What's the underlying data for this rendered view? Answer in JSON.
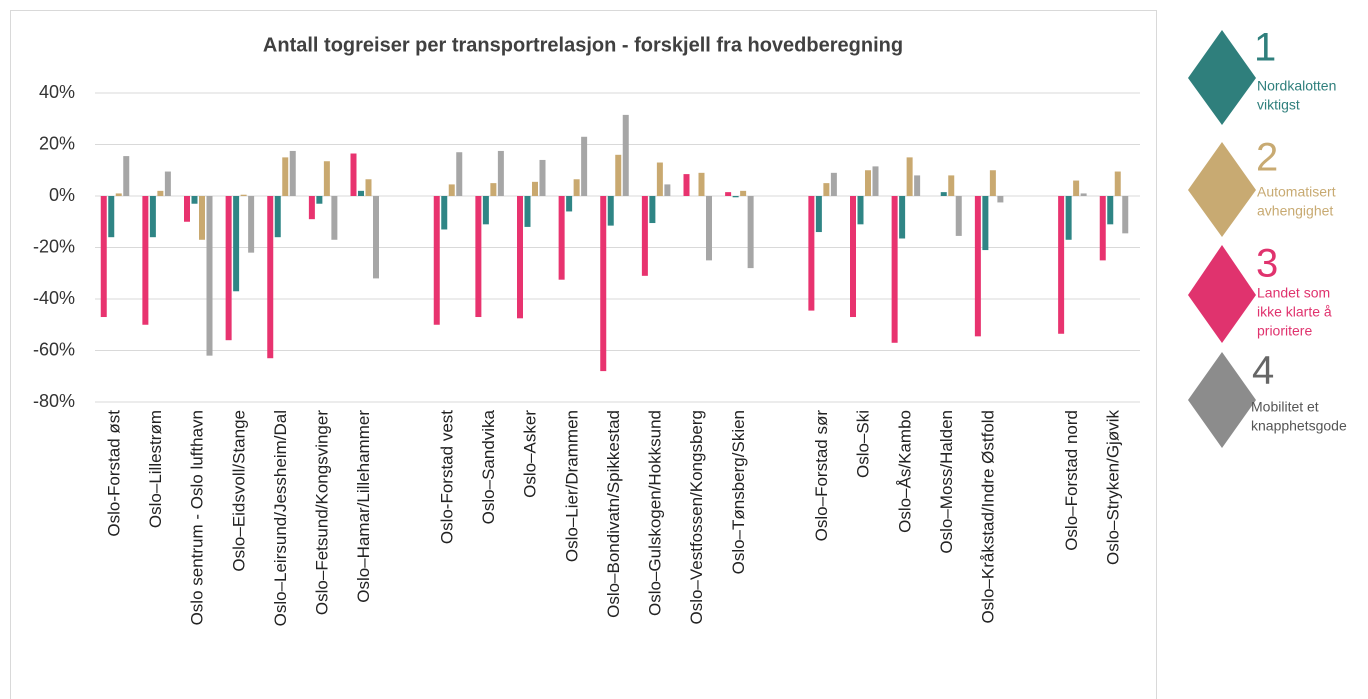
{
  "chart_data": {
    "type": "bar",
    "title": "Antall togreiser per transportrelasjon - forskjell fra hovedberegning",
    "categories": [
      "Oslo-Forstad øst",
      "Oslo–Lillestrøm",
      "Oslo sentrum - Oslo lufthavn",
      "Oslo–Eidsvoll/Stange",
      "Oslo–Leirsund/Jessheim/Dal",
      "Oslo–Fetsund/Kongsvinger",
      "Oslo–Hamar/Lillehammer",
      null,
      "Oslo-Forstad vest",
      "Oslo–Sandvika",
      "Oslo–Asker",
      "Oslo–Lier/Drammen",
      "Oslo–Bondivatn/Spikkestad",
      "Oslo–Gulskogen/Hokksund",
      "Oslo–Vestfossen/Kongsberg",
      "Oslo–Tønsberg/Skien",
      null,
      "Oslo–Forstad sør",
      "Oslo–Ski",
      "Oslo–Ås/Kambo",
      "Oslo–Moss/Halden",
      "Oslo–Kråkstad/Indre Østfold",
      null,
      "Oslo–Forstad nord",
      "Oslo–Stryken/Gjøvik"
    ],
    "series": [
      {
        "color": "#e8336f",
        "values": [
          -47,
          -50,
          -10,
          -56,
          -63,
          -9,
          16.5,
          null,
          -50,
          -47,
          -47.5,
          -32.5,
          -68,
          -31,
          8.5,
          1.5,
          null,
          -44.5,
          -47,
          -57,
          0,
          -54.5,
          null,
          -53.5,
          -25
        ]
      },
      {
        "color": "#2f8585",
        "values": [
          -16,
          -16,
          -3,
          -37,
          -16,
          -3,
          2,
          null,
          -13,
          -11,
          -12,
          -6,
          -11.5,
          -10.5,
          0,
          -0.5,
          null,
          -14,
          -11,
          -16.5,
          1.5,
          -21,
          null,
          -17,
          -11
        ]
      },
      {
        "color": "#c9a970",
        "values": [
          1,
          2,
          -17,
          0.5,
          15,
          13.5,
          6.5,
          null,
          4.5,
          5,
          5.5,
          6.5,
          16,
          13,
          9,
          2,
          null,
          5,
          10,
          15,
          8,
          10,
          null,
          6,
          9.5
        ]
      },
      {
        "color": "#a6a6a6",
        "values": [
          15.5,
          9.5,
          -62,
          -22,
          17.5,
          -17,
          -32,
          null,
          17,
          17.5,
          14,
          23,
          31.5,
          4.5,
          -25,
          -28,
          null,
          9,
          11.5,
          8,
          -15.5,
          -2.5,
          null,
          1,
          -14.5
        ]
      }
    ],
    "ylim": [
      -80,
      40
    ],
    "yticks": [
      {
        "value": -80,
        "label": "-80%"
      },
      {
        "value": -60,
        "label": "-60%"
      },
      {
        "value": -40,
        "label": "-40%"
      },
      {
        "value": -20,
        "label": "-20%"
      },
      {
        "value": 0,
        "label": "0%"
      },
      {
        "value": 20,
        "label": "20%"
      },
      {
        "value": 40,
        "label": "40%"
      }
    ],
    "grid": true
  },
  "scenario_panel": [
    {
      "number": "1",
      "lines": [
        "Nordkalotten",
        "viktigst"
      ]
    },
    {
      "number": "2",
      "lines": [
        "Automatisert",
        "avhengighet"
      ]
    },
    {
      "number": "3",
      "lines": [
        "Landet som",
        "ikke klarte å",
        "prioritere"
      ]
    },
    {
      "number": "4",
      "lines": [
        "Mobilitet et",
        "knapphetsgode"
      ]
    }
  ]
}
